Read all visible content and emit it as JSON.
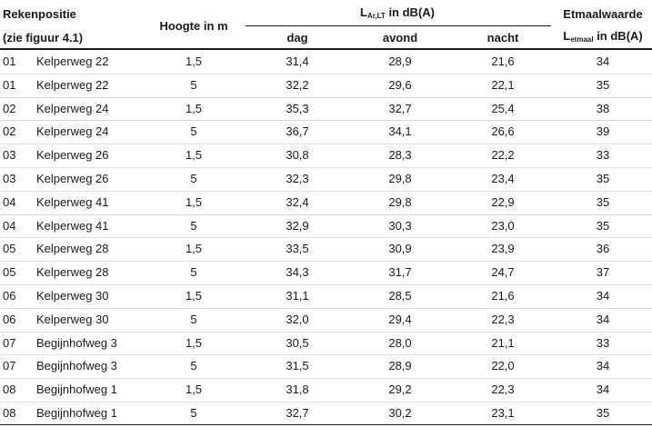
{
  "header": {
    "rekenpositie": "Rekenpositie",
    "zie_figuur": "(zie figuur 4.1)",
    "hoogte": "Hoogte in m",
    "lar": {
      "main": "L",
      "sub": "Ar,LT",
      "rest": "in dB(A)"
    },
    "dag": "dag",
    "avond": "avond",
    "nacht": "nacht",
    "etmaalwaarde": "Etmaalwaarde",
    "letmaal": {
      "main": "L",
      "sub": "etmaal",
      "rest": "in dB(A)"
    }
  },
  "table": {
    "rows": [
      [
        "01",
        "Kelperweg 22",
        "1,5",
        "31,4",
        "28,9",
        "21,6",
        "34"
      ],
      [
        "01",
        "Kelperweg 22",
        "5",
        "32,2",
        "29,6",
        "22,1",
        "35"
      ],
      [
        "02",
        "Kelperweg 24",
        "1,5",
        "35,3",
        "32,7",
        "25,4",
        "38"
      ],
      [
        "02",
        "Kelperweg 24",
        "5",
        "36,7",
        "34,1",
        "26,6",
        "39"
      ],
      [
        "03",
        "Kelperweg 26",
        "1,5",
        "30,8",
        "28,3",
        "22,2",
        "33"
      ],
      [
        "03",
        "Kelperweg 26",
        "5",
        "32,3",
        "29,8",
        "23,4",
        "35"
      ],
      [
        "04",
        "Kelperweg 41",
        "1,5",
        "32,4",
        "29,8",
        "22,9",
        "35"
      ],
      [
        "04",
        "Kelperweg 41",
        "5",
        "32,9",
        "30,3",
        "23,0",
        "35"
      ],
      [
        "05",
        "Kelperweg 28",
        "1,5",
        "33,5",
        "30,9",
        "23,9",
        "36"
      ],
      [
        "05",
        "Kelperweg 28",
        "5",
        "34,3",
        "31,7",
        "24,7",
        "37"
      ],
      [
        "06",
        "Kelperweg 30",
        "1,5",
        "31,1",
        "28,5",
        "21,6",
        "34"
      ],
      [
        "06",
        "Kelperweg 30",
        "5",
        "32,0",
        "29,4",
        "22,3",
        "34"
      ],
      [
        "07",
        "Begijnhofweg 3",
        "1,5",
        "30,5",
        "28,0",
        "21,1",
        "33"
      ],
      [
        "07",
        "Begijnhofweg 3",
        "5",
        "31,5",
        "28,9",
        "22,0",
        "34"
      ],
      [
        "08",
        "Begijnhofweg 1",
        "1,5",
        "31,8",
        "29,2",
        "22,3",
        "34"
      ],
      [
        "08",
        "Begijnhofweg 1",
        "5",
        "32,7",
        "30,2",
        "23,1",
        "35"
      ]
    ]
  }
}
